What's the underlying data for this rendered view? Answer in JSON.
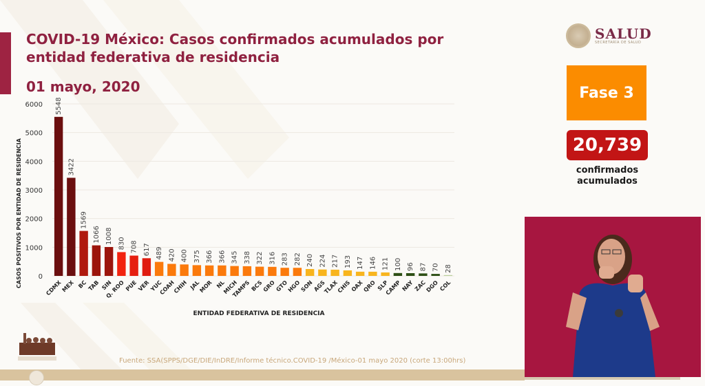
{
  "header": {
    "title": "COVID-19 México: Casos confirmados acumulados por entidad federativa de residencia",
    "date": "01 mayo, 2020"
  },
  "logo": {
    "name": "SALUD",
    "subtitle": "SECRETARÍA DE SALUD"
  },
  "phase": {
    "label": "Fase 3",
    "color": "#fb8c00"
  },
  "total": {
    "value": "20,739",
    "label_line1": "confirmados",
    "label_line2": "acumulados",
    "color": "#c21515"
  },
  "source": "Fuente: SSA(SPPS/DGE/DIE/InDRE/Informe técnico.COVID-19 /México-01 mayo 2020 (corte 13:00hrs)",
  "video": {
    "description": "Sign language interpreter"
  },
  "colors": {
    "accent": "#8f2140",
    "gold": "#d9c39e"
  },
  "chart_data": {
    "type": "bar",
    "title": "COVID-19 México: Casos confirmados acumulados por entidad federativa de residencia",
    "xlabel": "ENTIDAD FEDERATIVA DE RESIDENCIA",
    "ylabel": "CASOS POSITIVOS POR ENTIDAD DE RESIDENCIA",
    "ylim": [
      0,
      6000
    ],
    "yticks": [
      0,
      1000,
      2000,
      3000,
      4000,
      5000,
      6000
    ],
    "grid": true,
    "categories": [
      "CDMX",
      "MEX",
      "BC",
      "TAB",
      "SIN",
      "Q. ROO",
      "PUE",
      "VER",
      "YUC",
      "COAH",
      "CHIH",
      "JAL",
      "MOR",
      "NL",
      "MICH",
      "TAMPS",
      "BCS",
      "GRO",
      "GTO",
      "HGO",
      "SON",
      "AGS",
      "TLAX",
      "CHIS",
      "OAX",
      "QRO",
      "SLP",
      "CAMP",
      "NAY",
      "ZAC",
      "DGO",
      "COL"
    ],
    "values": [
      5548,
      3422,
      1569,
      1066,
      1008,
      830,
      708,
      617,
      489,
      420,
      400,
      375,
      366,
      366,
      345,
      338,
      322,
      316,
      283,
      282,
      240,
      224,
      217,
      193,
      147,
      146,
      121,
      100,
      96,
      87,
      70,
      28
    ],
    "bar_colors": [
      "#6b0f0f",
      "#6b0f0f",
      "#b01a0e",
      "#9c150c",
      "#9c150c",
      "#f2230f",
      "#e61f10",
      "#e01c10",
      "#fb7a0c",
      "#fb7a0c",
      "#fb7a0c",
      "#fb7a0c",
      "#fb7a0c",
      "#fb7a0c",
      "#fb7a0c",
      "#fb7a0c",
      "#fb7a0c",
      "#fb7a0c",
      "#fb7a0c",
      "#fb7a0c",
      "#f8b51e",
      "#f8b51e",
      "#f8b51e",
      "#f8b51e",
      "#f8b51e",
      "#f8b51e",
      "#f8b51e",
      "#2e5016",
      "#2e5016",
      "#2e5016",
      "#2e5016",
      "#b9cf9a"
    ]
  }
}
